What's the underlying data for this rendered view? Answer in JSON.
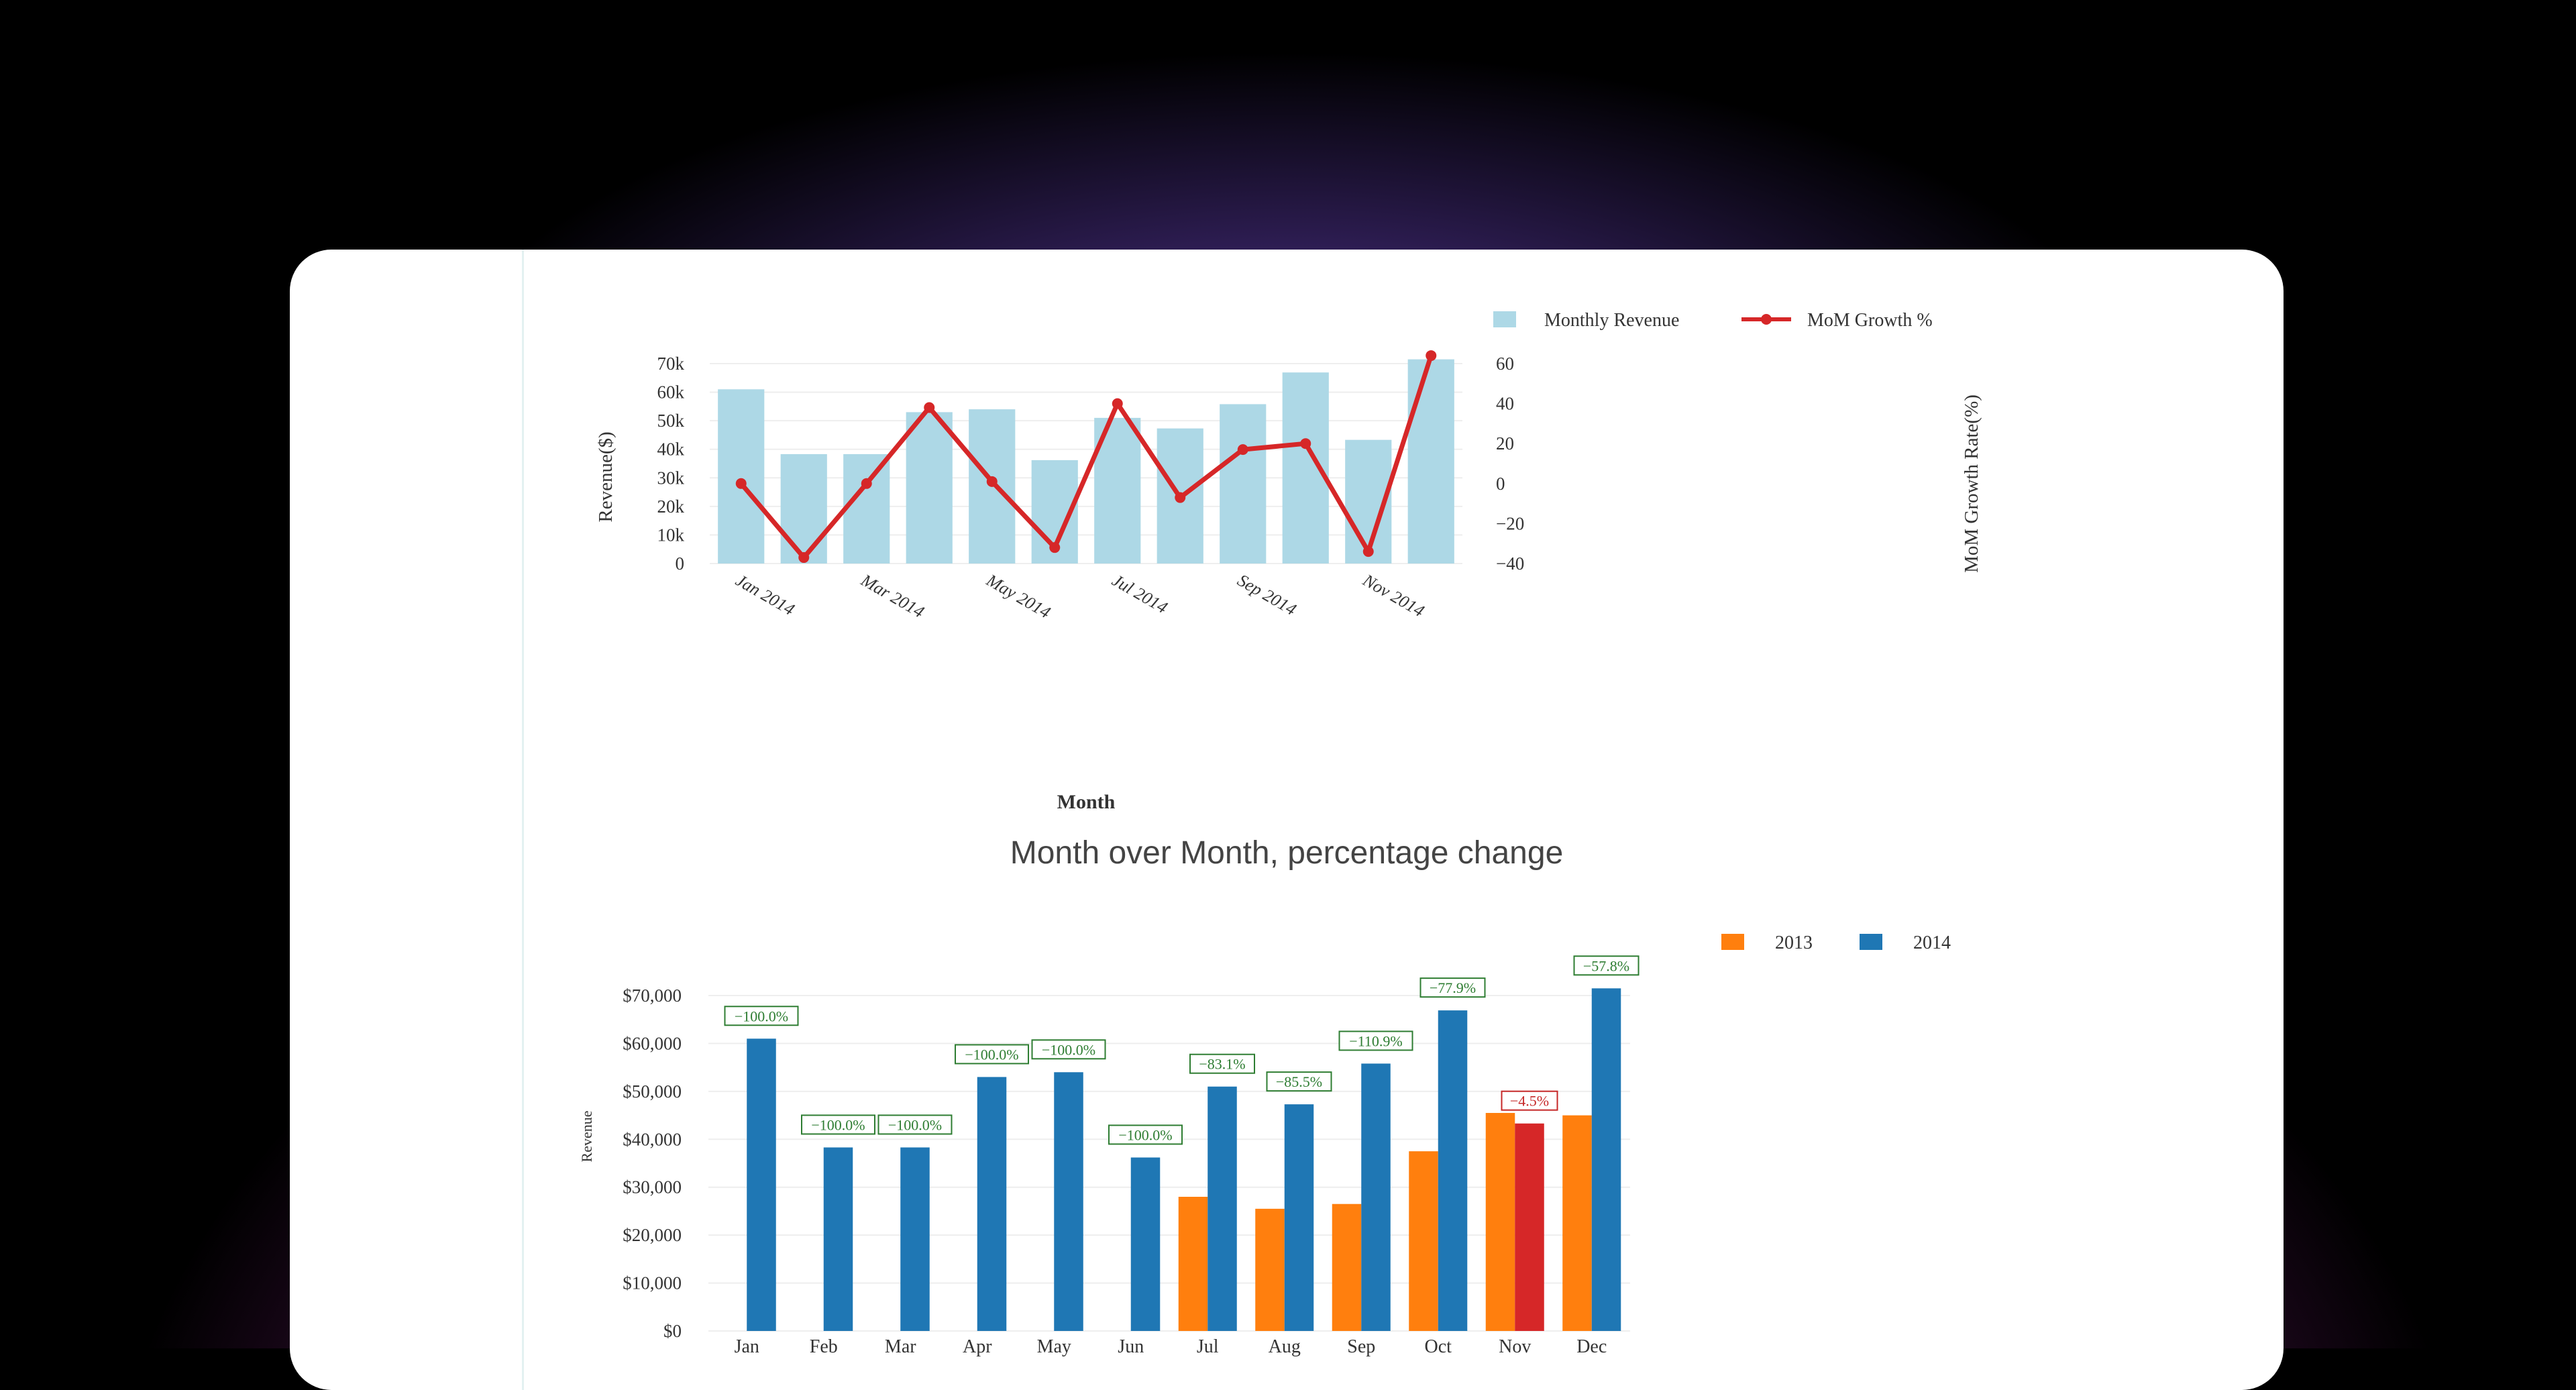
{
  "chart_data": [
    {
      "type": "bar",
      "categories": [
        "Jan 2014",
        "Feb 2014",
        "Mar 2014",
        "Apr 2014",
        "May 2014",
        "Jun 2014",
        "Jul 2014",
        "Aug 2014",
        "Sep 2014",
        "Oct 2014",
        "Nov 2014",
        "Dec 2014"
      ],
      "x_tick_labels": [
        "Jan 2014",
        "Mar 2014",
        "May 2014",
        "Jul 2014",
        "Sep 2014",
        "Nov 2014"
      ],
      "series": [
        {
          "name": "Monthly Revenue",
          "type": "bar",
          "axis": "left",
          "color": "#add8e6",
          "values": [
            61000,
            38300,
            38300,
            53000,
            54000,
            36200,
            51000,
            47300,
            55800,
            66900,
            43300,
            71500
          ]
        },
        {
          "name": "MoM Growth %",
          "type": "line",
          "axis": "right",
          "color": "#d62728",
          "values": [
            0,
            -37,
            0,
            38,
            1,
            -32,
            40,
            -7,
            17,
            20,
            -34,
            64
          ]
        }
      ],
      "xlabel": "Month",
      "ylabel": "Revenue($)",
      "y2label": "MoM Growth Rate(%)",
      "ylim": [
        0,
        70000
      ],
      "y_ticks": [
        "0",
        "10k",
        "20k",
        "30k",
        "40k",
        "50k",
        "60k",
        "70k"
      ],
      "y2lim": [
        -40,
        60
      ],
      "y2_ticks": [
        "−40",
        "−20",
        "0",
        "20",
        "40",
        "60"
      ],
      "legend_placement": "top-right",
      "grid": true
    },
    {
      "type": "bar",
      "title": "Month over Month, percentage change",
      "categories": [
        "Jan",
        "Feb",
        "Mar",
        "Apr",
        "May",
        "Jun",
        "Jul",
        "Aug",
        "Sep",
        "Oct",
        "Nov",
        "Dec"
      ],
      "series": [
        {
          "name": "2013",
          "color": "#ff7f0e",
          "values": [
            null,
            null,
            null,
            null,
            null,
            null,
            28000,
            25500,
            26500,
            37500,
            45500,
            45000
          ]
        },
        {
          "name": "2014",
          "color": "#1f77b4",
          "values": [
            61000,
            38300,
            38300,
            53000,
            54000,
            36200,
            51000,
            47300,
            55800,
            66900,
            43300,
            71500
          ]
        }
      ],
      "highlight_color": "#d62728",
      "highlight_category": "Nov",
      "annotations": [
        "−100.0%",
        "−100.0%",
        "−100.0%",
        "−100.0%",
        "−100.0%",
        "−100.0%",
        "−83.1%",
        "−85.5%",
        "−110.9%",
        "−77.9%",
        "−4.5%",
        "−57.8%"
      ],
      "annotation_colors": [
        "#2e7d32",
        "#2e7d32",
        "#2e7d32",
        "#2e7d32",
        "#2e7d32",
        "#2e7d32",
        "#2e7d32",
        "#2e7d32",
        "#2e7d32",
        "#2e7d32",
        "#c62828",
        "#2e7d32"
      ],
      "ylabel": "Revenue",
      "ylim": [
        0,
        70000
      ],
      "y_ticks": [
        "$0",
        "$10,000",
        "$20,000",
        "$30,000",
        "$40,000",
        "$50,000",
        "$60,000",
        "$70,000"
      ],
      "legend_placement": "top-right",
      "grid": true
    }
  ]
}
